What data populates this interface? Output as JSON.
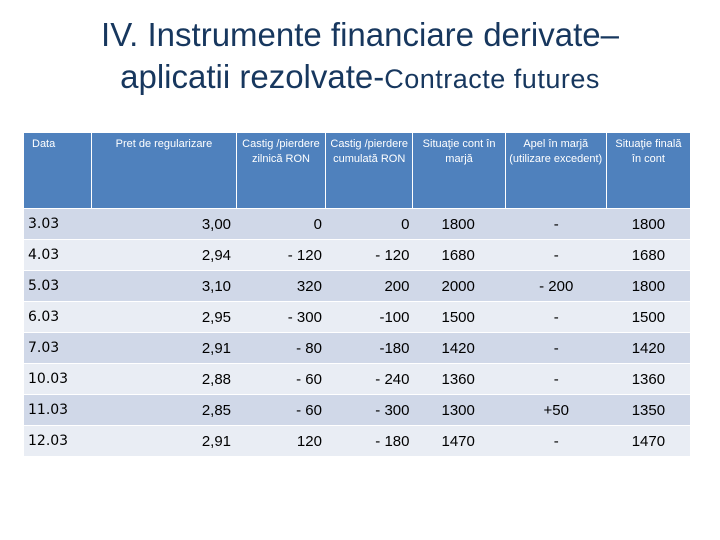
{
  "title": {
    "line1": "IV. Instrumente financiare derivate–",
    "line2a": "aplicatii rezolvate-",
    "line2b": "Contracte futures"
  },
  "table": {
    "headers": [
      "Data",
      "Pret de regularizare",
      "Castig /pierdere zilnică RON",
      "Castig /pierdere cumulată RON",
      "Situaţie cont în marjă",
      "Apel în marjă (utilizare excedent)",
      "Situaţie finală în cont"
    ],
    "rows": [
      [
        "3.03",
        "3,00",
        "0",
        "0",
        "1800",
        "-",
        "1800"
      ],
      [
        "4.03",
        "2,94",
        "- 120",
        "- 120",
        "1680",
        "-",
        "1680"
      ],
      [
        "5.03",
        "3,10",
        "320",
        "200",
        "2000",
        "- 200",
        "1800"
      ],
      [
        "6.03",
        "2,95",
        "- 300",
        "-100",
        "1500",
        "-",
        "1500"
      ],
      [
        "7.03",
        "2,91",
        "- 80",
        "-180",
        "1420",
        "-",
        "1420"
      ],
      [
        "10.03",
        "2,88",
        "- 60",
        "- 240",
        "1360",
        "-",
        "1360"
      ],
      [
        "11.03",
        "2,85",
        "- 60",
        "- 300",
        "1300",
        "+50",
        "1350"
      ],
      [
        "12.03",
        "2,91",
        "120",
        "- 180",
        "1470",
        "-",
        "1470"
      ]
    ]
  }
}
